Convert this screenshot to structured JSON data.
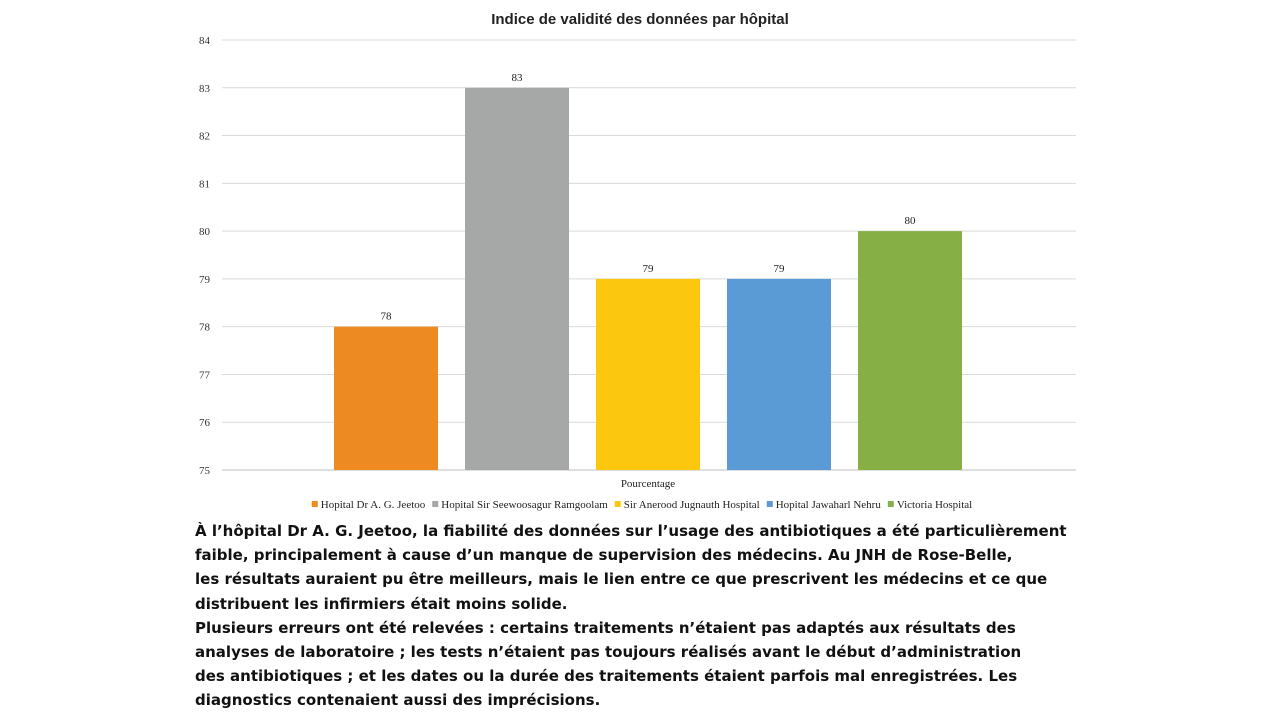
{
  "chart_data": {
    "type": "bar",
    "title": "Indice de validité des données par hôpital",
    "xlabel": "Pourcentage",
    "ylabel": "",
    "ylim": [
      75,
      84
    ],
    "yticks": [
      75,
      76,
      77,
      78,
      79,
      80,
      81,
      82,
      83,
      84
    ],
    "grid": true,
    "legend_position": "bottom",
    "categories": [
      "Hopital Dr A. G. Jeetoo",
      "Hopital Sir Seewoosagur Ramgoolam",
      "Sir Anerood Jugnauth Hospital",
      "Hopital Jawaharl Nehru",
      "Victoria Hospital"
    ],
    "values": [
      78,
      83,
      79,
      79,
      80
    ],
    "colors": [
      "#ee8a22",
      "#a5a8a6",
      "#fbc70f",
      "#5b9bd5",
      "#86b046"
    ]
  },
  "caption": {
    "paragraph_1": "À l’hôpital Dr A. G. Jeetoo, la fiabilité des données sur l’usage des antibiotiques a été particulièrement\nfaible, principalement à cause d’un manque de supervision des médecins. Au JNH de Rose-Belle,\nles résultats auraient pu être meilleurs, mais le lien entre ce que prescrivent les médecins et ce que\ndistribuent les infirmiers était moins solide.",
    "paragraph_2": "Plusieurs erreurs ont été relevées : certains traitements n’étaient pas adaptés aux résultats des\nanalyses de laboratoire ; les tests n’étaient pas toujours réalisés avant le début d’administration\ndes antibiotiques ; et les dates ou la durée des traitements étaient parfois mal enregistrées. Les\ndiagnostics contenaient aussi des imprécisions."
  }
}
